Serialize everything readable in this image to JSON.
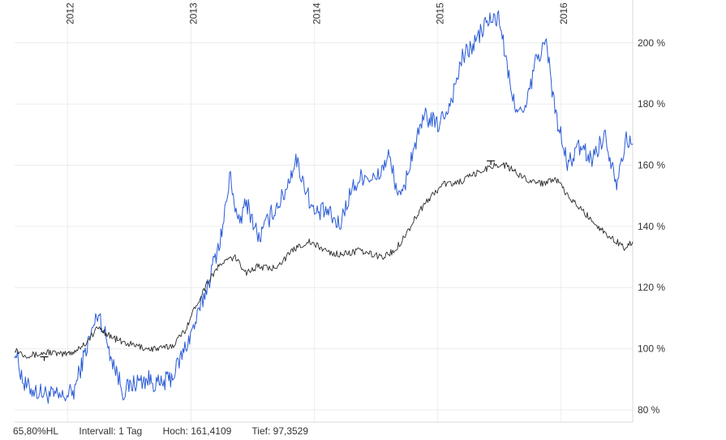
{
  "chart_data": {
    "type": "line",
    "title": "",
    "xlabel": "",
    "ylabel": "",
    "x_tick_labels": [
      "2012",
      "2013",
      "2014",
      "2015",
      "2016"
    ],
    "x_tick_positions": [
      2012.0,
      2013.0,
      2014.0,
      2015.0,
      2016.0
    ],
    "xlim": [
      2011.57,
      2016.58
    ],
    "y_tick_labels": [
      "80 %",
      "100 %",
      "120 %",
      "140 %",
      "160 %",
      "180 %",
      "200 %"
    ],
    "y_ticks": [
      80,
      100,
      120,
      140,
      160,
      180,
      200
    ],
    "ylim": [
      76,
      214
    ],
    "grid": true,
    "y_axis_position": "right",
    "series": [
      {
        "color": "#2a5bd7",
        "x": [
          2011.57,
          2011.65,
          2011.75,
          2011.85,
          2011.95,
          2012.05,
          2012.15,
          2012.25,
          2012.35,
          2012.45,
          2012.55,
          2012.65,
          2012.75,
          2012.85,
          2012.95,
          2013.05,
          2013.15,
          2013.25,
          2013.32,
          2013.38,
          2013.45,
          2013.55,
          2013.65,
          2013.75,
          2013.85,
          2013.95,
          2014.0,
          2014.1,
          2014.2,
          2014.3,
          2014.4,
          2014.5,
          2014.6,
          2014.7,
          2014.8,
          2014.9,
          2015.0,
          2015.1,
          2015.2,
          2015.3,
          2015.4,
          2015.5,
          2015.6,
          2015.7,
          2015.8,
          2015.88,
          2015.95,
          2016.05,
          2016.15,
          2016.25,
          2016.35,
          2016.45,
          2016.52,
          2016.58
        ],
        "y": [
          100,
          88,
          86,
          85,
          84,
          86,
          100,
          112,
          98,
          86,
          89,
          90,
          88,
          91,
          100,
          110,
          123,
          138,
          157,
          140,
          148,
          136,
          144,
          150,
          162,
          150,
          144,
          145,
          140,
          152,
          157,
          155,
          163,
          148,
          165,
          176,
          173,
          180,
          195,
          200,
          207,
          208,
          182,
          176,
          195,
          200,
          178,
          160,
          166,
          162,
          170,
          155,
          168,
          167
        ]
      },
      {
        "color": "#2b2b2b",
        "x": [
          2011.57,
          2011.65,
          2011.75,
          2011.85,
          2011.95,
          2012.05,
          2012.15,
          2012.25,
          2012.35,
          2012.45,
          2012.55,
          2012.65,
          2012.75,
          2012.85,
          2012.95,
          2013.05,
          2013.15,
          2013.25,
          2013.35,
          2013.45,
          2013.55,
          2013.65,
          2013.75,
          2013.85,
          2013.95,
          2014.05,
          2014.15,
          2014.25,
          2014.35,
          2014.45,
          2014.55,
          2014.65,
          2014.75,
          2014.85,
          2014.95,
          2015.05,
          2015.15,
          2015.25,
          2015.35,
          2015.45,
          2015.55,
          2015.65,
          2015.75,
          2015.85,
          2015.95,
          2016.05,
          2016.15,
          2016.25,
          2016.35,
          2016.45,
          2016.52,
          2016.58
        ],
        "y": [
          100,
          98,
          98,
          99,
          98,
          99,
          102,
          107,
          104,
          102,
          101,
          100,
          100,
          101,
          106,
          115,
          123,
          128,
          130,
          125,
          127,
          126,
          129,
          133,
          135,
          133,
          131,
          131,
          132,
          131,
          130,
          132,
          138,
          145,
          150,
          154,
          154,
          156,
          158,
          160,
          160,
          157,
          155,
          154,
          156,
          150,
          146,
          142,
          138,
          135,
          133,
          135
        ]
      }
    ],
    "hl_markers": [
      {
        "x": 2011.81,
        "y": 97.35
      },
      {
        "x": 2015.43,
        "y": 161.41
      }
    ]
  },
  "footer": {
    "perf": "65,80%HL",
    "interval": "Intervall: 1 Tag",
    "high": "Hoch: 161,4109",
    "low": "Tief: 97,3529"
  }
}
